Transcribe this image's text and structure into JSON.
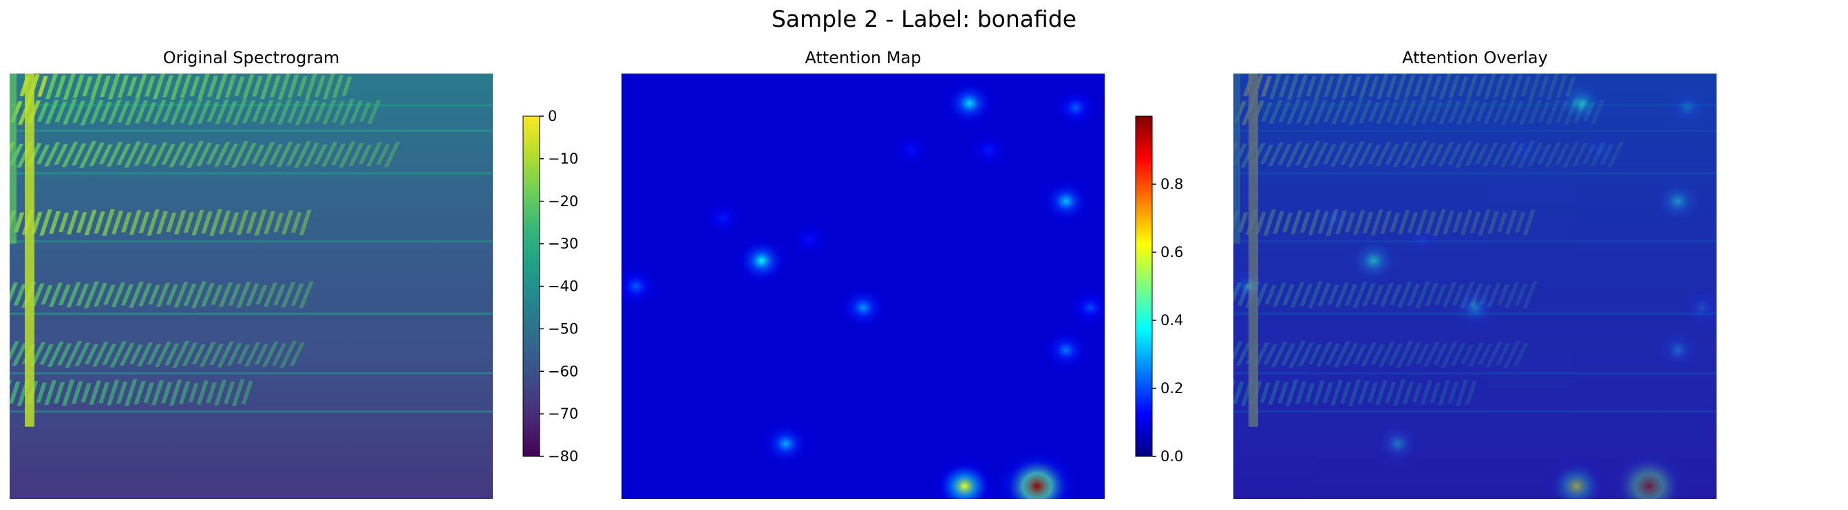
{
  "figure": {
    "title": "Sample 2 - Label: bonafide"
  },
  "chart_data": [
    {
      "type": "heatmap",
      "title": "Original Spectrogram",
      "xlabel": "",
      "ylabel": "",
      "axes_visible": false,
      "colormap": "viridis",
      "value_range": [
        -80,
        0
      ],
      "colorbar": {
        "position": "right",
        "ticks": [
          0,
          -10,
          -20,
          -30,
          -40,
          -50,
          -60,
          -70,
          -80
        ],
        "tick_labels": [
          "0",
          "−10",
          "−20",
          "−30",
          "−40",
          "−50",
          "−60",
          "−70",
          "−80"
        ]
      },
      "harmonic_bands": [
        {
          "y": 0.03,
          "level": -18
        },
        {
          "y": 0.09,
          "level": -22
        },
        {
          "y": 0.19,
          "level": -20
        },
        {
          "y": 0.35,
          "level": -15
        },
        {
          "y": 0.52,
          "level": -22
        },
        {
          "y": 0.66,
          "level": -24
        },
        {
          "y": 0.75,
          "level": -25
        }
      ],
      "background_level": -62
    },
    {
      "type": "heatmap",
      "title": "Attention Map",
      "xlabel": "",
      "ylabel": "",
      "axes_visible": false,
      "colormap": "jet",
      "value_range": [
        0,
        1
      ],
      "colorbar": {
        "position": "right",
        "ticks": [
          0.8,
          0.6,
          0.4,
          0.2,
          0.0
        ],
        "tick_labels": [
          "0.8",
          "0.6",
          "0.4",
          "0.2",
          "0.0"
        ]
      },
      "background_value": 0.08,
      "hotspots": [
        {
          "x": 0.72,
          "y": 0.07,
          "value": 0.35
        },
        {
          "x": 0.94,
          "y": 0.08,
          "value": 0.22
        },
        {
          "x": 0.29,
          "y": 0.44,
          "value": 0.38
        },
        {
          "x": 0.92,
          "y": 0.3,
          "value": 0.32
        },
        {
          "x": 0.5,
          "y": 0.55,
          "value": 0.28
        },
        {
          "x": 0.03,
          "y": 0.5,
          "value": 0.22
        },
        {
          "x": 0.97,
          "y": 0.55,
          "value": 0.2
        },
        {
          "x": 0.92,
          "y": 0.65,
          "value": 0.25
        },
        {
          "x": 0.34,
          "y": 0.87,
          "value": 0.3
        },
        {
          "x": 0.71,
          "y": 0.97,
          "value": 0.6
        },
        {
          "x": 0.86,
          "y": 0.97,
          "value": 0.98
        },
        {
          "x": 0.21,
          "y": 0.34,
          "value": 0.15
        },
        {
          "x": 0.39,
          "y": 0.39,
          "value": 0.14
        },
        {
          "x": 0.6,
          "y": 0.18,
          "value": 0.14
        },
        {
          "x": 0.76,
          "y": 0.18,
          "value": 0.15
        }
      ]
    },
    {
      "type": "heatmap",
      "title": "Attention Overlay",
      "xlabel": "",
      "ylabel": "",
      "axes_visible": false,
      "composite": "spectrogram + attention (alpha blend)",
      "overlay_alpha": 0.5
    }
  ]
}
